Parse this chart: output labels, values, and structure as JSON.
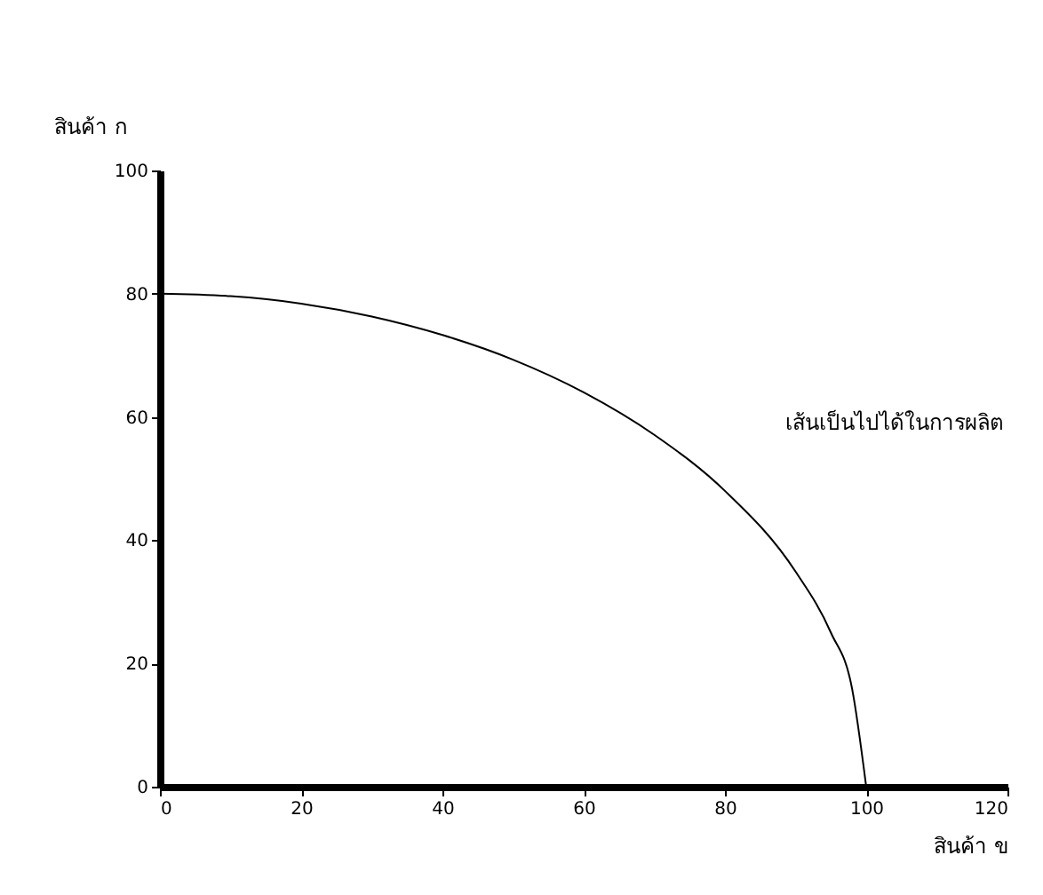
{
  "chart_data": {
    "type": "line",
    "xlabel": "สินค้า ข",
    "ylabel": "สินค้า ก",
    "x": [
      0,
      10,
      20,
      30,
      40,
      50,
      60,
      70,
      80,
      90,
      95,
      98,
      100
    ],
    "values": [
      80,
      79.6,
      78.4,
      76.3,
      73.3,
      69.3,
      64,
      57.1,
      48,
      34.9,
      25,
      15.9,
      0
    ],
    "color": "#000000",
    "xlim": [
      0,
      120
    ],
    "ylim": [
      0,
      100
    ],
    "xticks": [
      0,
      20,
      40,
      60,
      80,
      100,
      120
    ],
    "yticks": [
      0,
      20,
      40,
      60,
      80,
      100
    ],
    "annotations": [
      "เส้นเป็นไปได้ในการผลิต"
    ]
  }
}
